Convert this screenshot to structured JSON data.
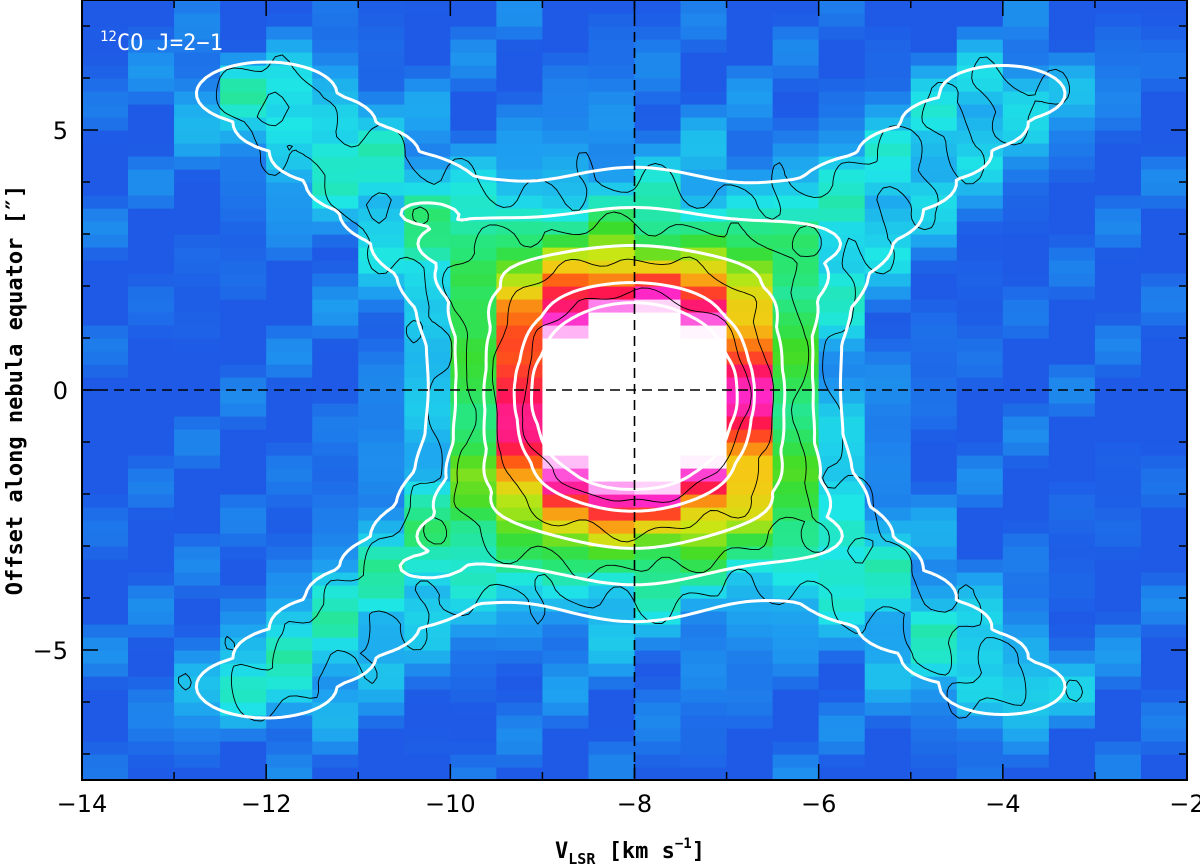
{
  "chart_data": {
    "type": "heatmap",
    "title": "",
    "annotation": {
      "sup": "12",
      "text": "CO J=2−1"
    },
    "xlabel": {
      "main": "V",
      "sub": "LSR",
      "rest": "  [km s",
      "sup": "−1",
      "end": "]"
    },
    "ylabel": "Offset along nebula equator [″]",
    "xlim": [
      -14,
      -2
    ],
    "ylim": [
      -7.5,
      7.5
    ],
    "x_ticks": [
      -14,
      -12,
      -10,
      -8,
      -6,
      -4,
      -2
    ],
    "x_tick_labels": [
      "−14",
      "−12",
      "−10",
      "−8",
      "−6",
      "−4",
      "−2"
    ],
    "y_ticks": [
      -5,
      0,
      5
    ],
    "y_tick_labels": [
      "−5",
      "0",
      "5"
    ],
    "channel_width": 0.5,
    "reference_lines": {
      "x": -8,
      "y": 0,
      "style": "dashed"
    },
    "colormap": [
      "#1e5ae6",
      "#1ea0f0",
      "#1ee6e6",
      "#28e678",
      "#3cdc28",
      "#c8e614",
      "#f5c814",
      "#ff5a14",
      "#ff1450",
      "#ff28c8",
      "#ff8cf0",
      "#ffffff"
    ],
    "background_color": "#1e6ae8",
    "component_model": {
      "core": {
        "x0": -8.0,
        "y0": -0.2,
        "sx": 0.85,
        "sy": 1.6,
        "amp": 1.0
      },
      "envelope": {
        "x0": -8.0,
        "y0": 0.0,
        "sx": 1.3,
        "sy": 2.8,
        "amp": 0.32
      },
      "lobes": [
        {
          "x0": -12.0,
          "y0": 5.7,
          "amp": 0.2
        },
        {
          "x0": -12.0,
          "y0": -5.7,
          "amp": 0.2
        },
        {
          "x0": -4.0,
          "y0": 5.7,
          "amp": 0.18
        },
        {
          "x0": -4.0,
          "y0": -5.7,
          "amp": 0.18
        }
      ]
    },
    "model_contour_levels": [
      0.12,
      0.22,
      0.4,
      0.7,
      0.92
    ],
    "observed_contour_levels": [
      0.15,
      0.28,
      0.5,
      0.8
    ],
    "contour_colors": {
      "model": "#ffffff",
      "observed": "#000000"
    }
  }
}
